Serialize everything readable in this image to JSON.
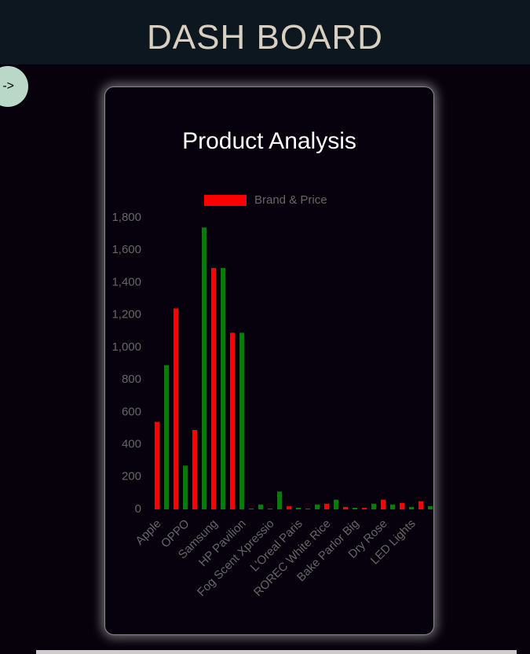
{
  "header": {
    "title": "DASH BOARD",
    "toggle": "->"
  },
  "chart_data": {
    "type": "bar",
    "title": "Product Analysis",
    "series": [
      {
        "name": "Brand & Price",
        "color": "#ff0000",
        "colors": [
          "#ff0000",
          "#008000"
        ],
        "values": [
          540,
          890,
          1240,
          270,
          490,
          1740,
          1490,
          1490,
          1090,
          1090,
          5,
          30,
          5,
          110,
          20,
          10,
          5,
          30,
          35,
          60,
          15,
          10,
          10,
          35,
          60,
          30,
          40,
          15,
          50,
          20
        ]
      }
    ],
    "categories": [
      "Apple",
      null,
      null,
      "OPPO",
      null,
      null,
      "Samsung",
      null,
      null,
      "HP Pavilion",
      null,
      null,
      "Fog Scent Xpressio",
      null,
      null,
      "L'Oreal Paris",
      null,
      null,
      "ROREC White Rice",
      null,
      null,
      "Bake Parlor Big",
      null,
      null,
      "Dry Rose",
      null,
      null,
      "LED Lights",
      null,
      null
    ],
    "ylim": [
      0,
      1800
    ],
    "yticks": [
      0,
      200,
      400,
      600,
      800,
      {
        "value": 1000,
        "label": "1,000"
      },
      {
        "value": 1200,
        "label": "1,200"
      },
      {
        "value": 1400,
        "label": "1,400"
      },
      {
        "value": 1600,
        "label": "1,600"
      },
      {
        "value": 1800,
        "label": "1,800"
      }
    ],
    "grid": false,
    "legend": "top"
  }
}
